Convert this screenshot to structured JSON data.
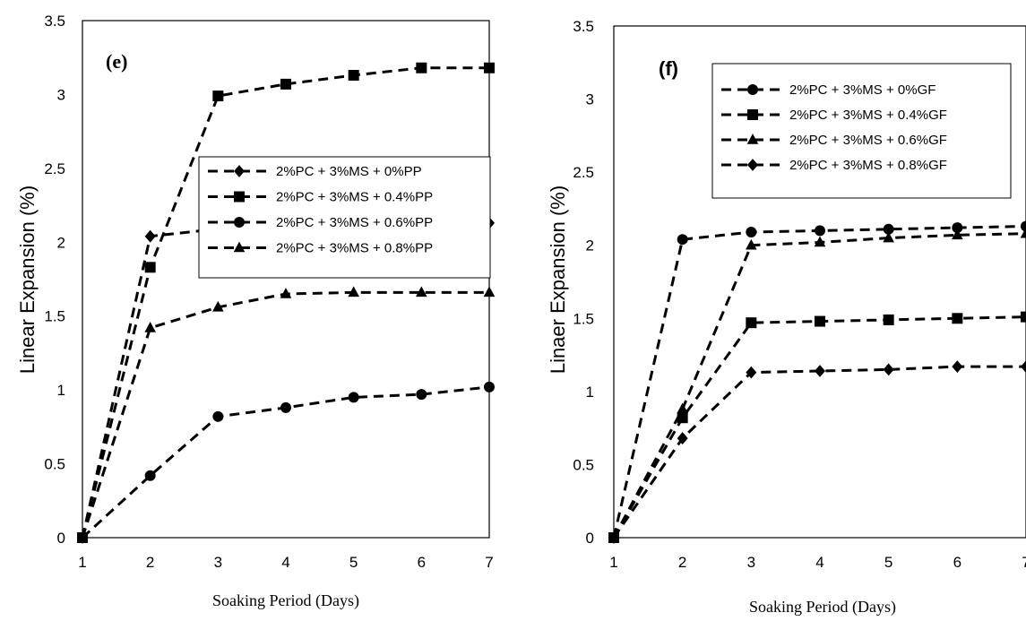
{
  "chart_data": [
    {
      "type": "line",
      "panel_label": "(e)",
      "xlabel": "Soaking Period (Days)",
      "ylabel": "Linear Expansion (%)",
      "x": [
        1,
        2,
        3,
        4,
        5,
        6,
        7
      ],
      "xticks": [
        "1",
        "2",
        "3",
        "4",
        "5",
        "6",
        "7"
      ],
      "yticks": [
        "0",
        "0.5",
        "1",
        "1.5",
        "2",
        "2.5",
        "3",
        "3.5"
      ],
      "xlim": [
        1,
        7
      ],
      "ylim": [
        0,
        3.5
      ],
      "grid": false,
      "legend_position": "top-right",
      "series": [
        {
          "name": "2%PC + 3%MS + 0%PP",
          "marker": "diamond",
          "values": [
            0,
            2.04,
            2.09,
            2.1,
            2.11,
            2.12,
            2.13
          ]
        },
        {
          "name": "2%PC + 3%MS + 0.4%PP",
          "marker": "square",
          "values": [
            0,
            1.83,
            2.99,
            3.07,
            3.13,
            3.18,
            3.18
          ]
        },
        {
          "name": "2%PC + 3%MS + 0.6%PP",
          "marker": "circle",
          "values": [
            0,
            0.42,
            0.82,
            0.88,
            0.95,
            0.97,
            1.02
          ]
        },
        {
          "name": "2%PC + 3%MS + 0.8%PP",
          "marker": "triangle",
          "values": [
            0,
            1.42,
            1.56,
            1.65,
            1.66,
            1.66,
            1.66
          ]
        }
      ]
    },
    {
      "type": "line",
      "panel_label": "(f)",
      "xlabel": "Soaking Period (Days)",
      "ylabel": "Linaer Expansion (%)",
      "x": [
        1,
        2,
        3,
        4,
        5,
        6,
        7
      ],
      "xticks": [
        "1",
        "2",
        "3",
        "4",
        "5",
        "6",
        "7"
      ],
      "yticks": [
        "0",
        "0.5",
        "1",
        "1.5",
        "2",
        "2.5",
        "3",
        "3.5"
      ],
      "xlim": [
        1,
        7
      ],
      "ylim": [
        0,
        3.5
      ],
      "grid": false,
      "legend_position": "top-right",
      "series": [
        {
          "name": "2%PC + 3%MS + 0%GF",
          "marker": "circle",
          "values": [
            0,
            2.04,
            2.09,
            2.1,
            2.11,
            2.12,
            2.13
          ]
        },
        {
          "name": "2%PC + 3%MS + 0.4%GF",
          "marker": "square",
          "values": [
            0,
            0.82,
            1.47,
            1.48,
            1.49,
            1.5,
            1.51
          ]
        },
        {
          "name": "2%PC + 3%MS + 0.6%GF",
          "marker": "triangle",
          "values": [
            0,
            0.88,
            2.0,
            2.02,
            2.05,
            2.07,
            2.08
          ]
        },
        {
          "name": "2%PC + 3%MS + 0.8%GF",
          "marker": "diamond",
          "values": [
            0,
            0.68,
            1.13,
            1.14,
            1.15,
            1.17,
            1.17
          ]
        }
      ]
    }
  ]
}
